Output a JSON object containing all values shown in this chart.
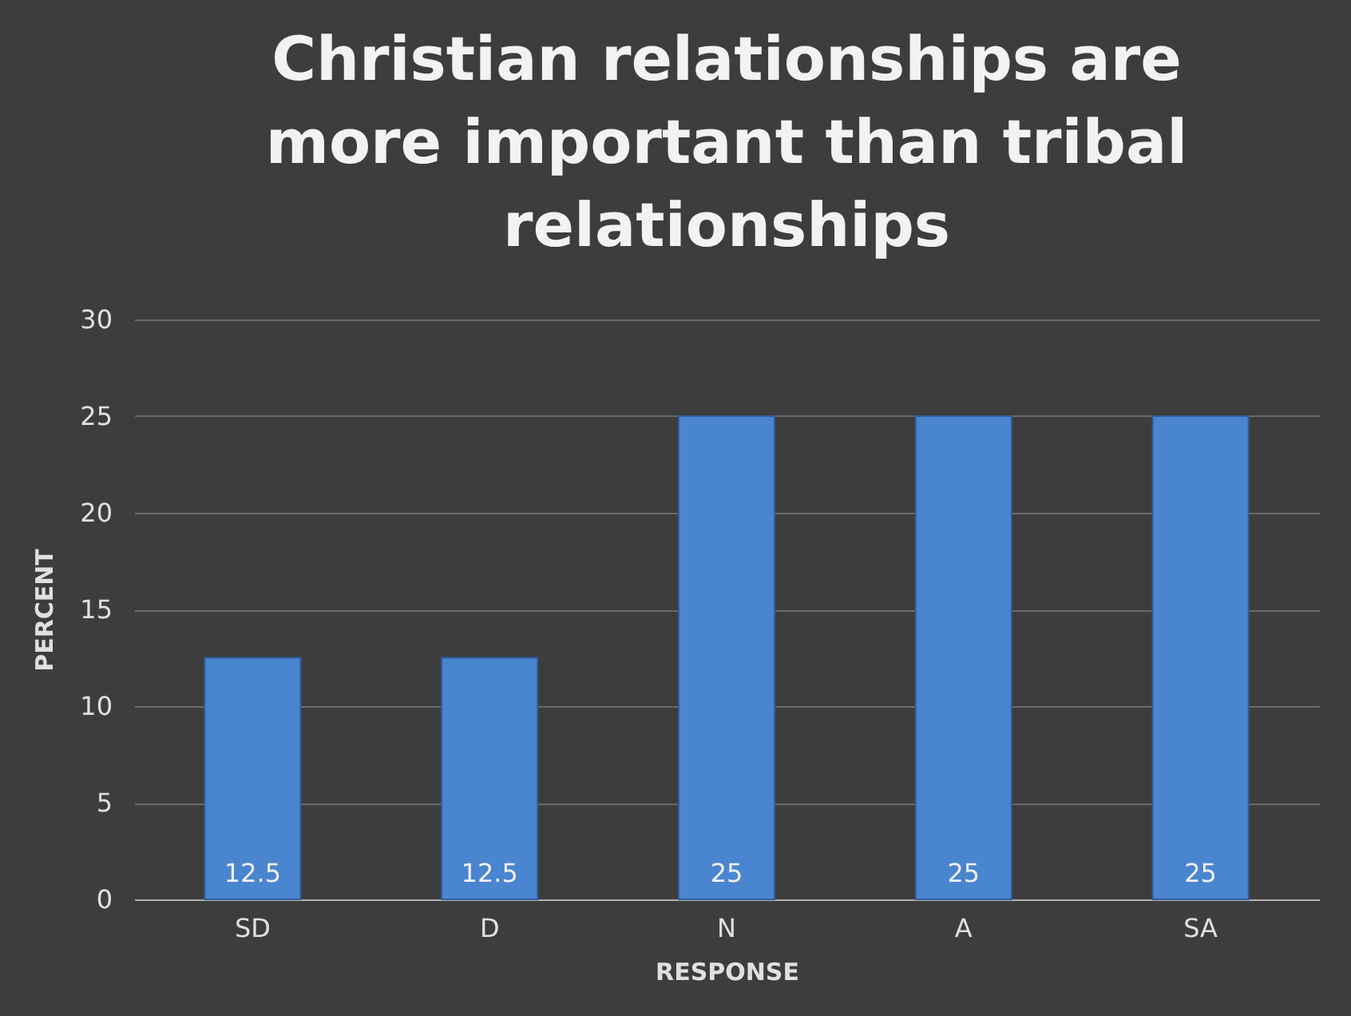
{
  "chart_data": {
    "type": "bar",
    "title": "Christian relationships are more important than tribal relationships",
    "xlabel": "RESPONSE",
    "ylabel": "PERCENT",
    "categories": [
      "SD",
      "D",
      "N",
      "A",
      "SA"
    ],
    "values": [
      12.5,
      12.5,
      25,
      25,
      25
    ],
    "color": "#4a85cf",
    "ylim": [
      0,
      30
    ],
    "yticks": [
      0,
      5,
      10,
      15,
      20,
      25,
      30
    ],
    "grid": "y",
    "data_labels": true
  }
}
